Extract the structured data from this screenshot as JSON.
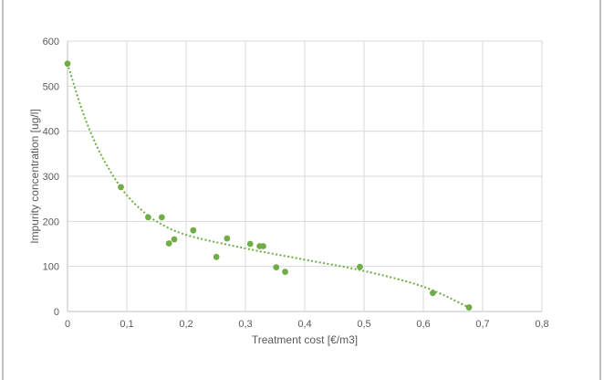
{
  "chart_data": {
    "type": "scatter",
    "title": "",
    "xlabel": "Treatment cost [€/m3]",
    "ylabel": "Impurity concentration [ug/l]",
    "xlim": [
      0,
      0.8
    ],
    "ylim": [
      0,
      600
    ],
    "x_ticks": [
      "0",
      "0,1",
      "0,2",
      "0,3",
      "0,4",
      "0,5",
      "0,6",
      "0,7",
      "0,8"
    ],
    "y_ticks": [
      "0",
      "100",
      "200",
      "300",
      "400",
      "500",
      "600"
    ],
    "grid": true,
    "legend": "none",
    "series": [
      {
        "name": "Impurity concentration",
        "color": "#70AD47",
        "x": [
          0,
          0.09,
          0.136,
          0.159,
          0.171,
          0.18,
          0.212,
          0.251,
          0.269,
          0.308,
          0.324,
          0.33,
          0.352,
          0.367,
          0.493,
          0.616,
          0.677
        ],
        "y": [
          550,
          276,
          209,
          209,
          151,
          160,
          180,
          121,
          162,
          150,
          145,
          145,
          98,
          88,
          99,
          41,
          9
        ]
      }
    ],
    "trendline": {
      "type": "polynomial",
      "style": "dotted",
      "color": "#70AD47",
      "x": [
        0,
        0.025,
        0.05,
        0.075,
        0.1,
        0.125,
        0.15,
        0.2,
        0.3,
        0.4,
        0.5,
        0.6,
        0.677
      ],
      "y": [
        550,
        445,
        365,
        305,
        258,
        225,
        200,
        170,
        140,
        115,
        90,
        55,
        9
      ]
    }
  }
}
